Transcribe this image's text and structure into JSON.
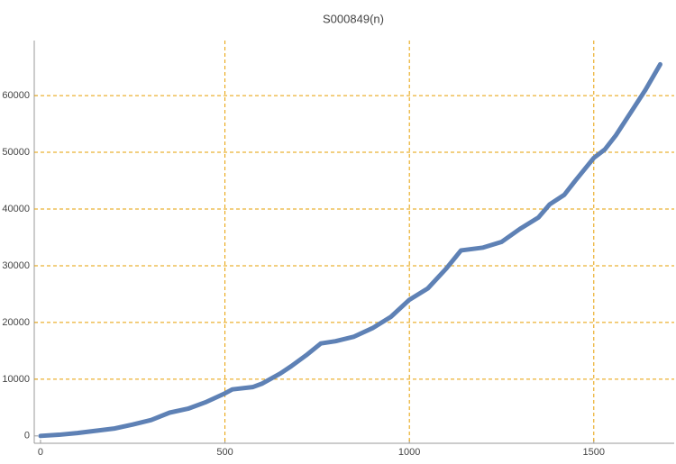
{
  "chart_data": {
    "type": "line",
    "title": "S000849(n)",
    "x": [
      0,
      50,
      100,
      150,
      200,
      250,
      300,
      350,
      400,
      450,
      500,
      520,
      575,
      600,
      650,
      680,
      720,
      760,
      800,
      850,
      900,
      950,
      1000,
      1050,
      1100,
      1140,
      1200,
      1250,
      1300,
      1350,
      1380,
      1420,
      1450,
      1500,
      1530,
      1560,
      1600,
      1640,
      1680
    ],
    "series": [
      {
        "color": "#5e81b5",
        "values": [
          0,
          200,
          500,
          900,
          1300,
          2000,
          2800,
          4100,
          4800,
          6000,
          7500,
          8200,
          8600,
          9200,
          11000,
          12300,
          14200,
          16300,
          16700,
          17500,
          19000,
          21000,
          24000,
          26000,
          29500,
          32700,
          33200,
          34200,
          36500,
          38500,
          40800,
          42500,
          45000,
          49000,
          50500,
          53000,
          57000,
          61000,
          65500
        ]
      }
    ],
    "xlim": [
      -17,
      1718
    ],
    "ylim": [
      -1300,
      69700
    ],
    "xticks": [
      0,
      500,
      1000,
      1500
    ],
    "yticks": [
      0,
      10000,
      20000,
      30000,
      40000,
      50000,
      60000
    ],
    "grid": true,
    "grid_color": "#e69f00"
  }
}
